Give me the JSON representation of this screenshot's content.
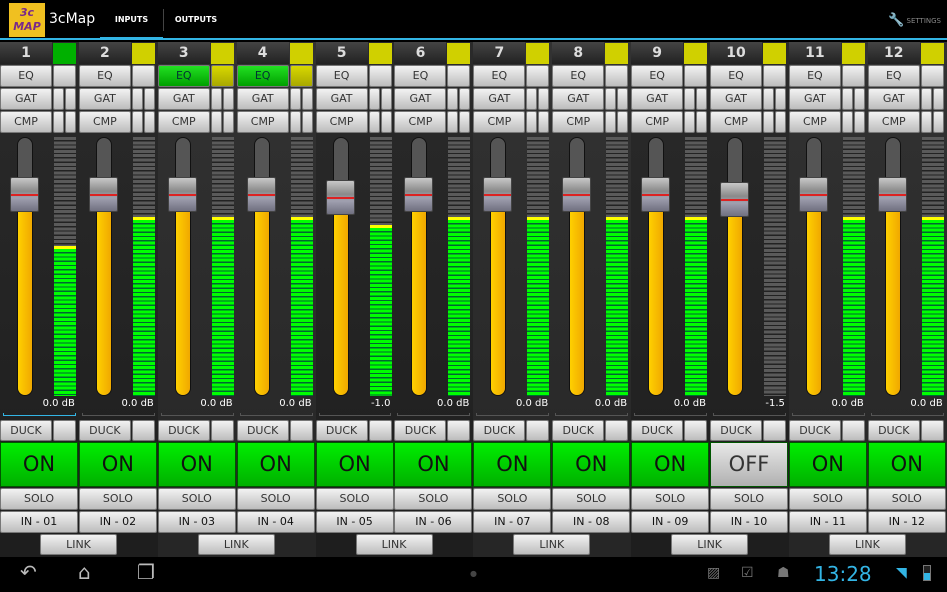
{
  "app": {
    "logo_top": "3c",
    "logo_bottom": "MAP",
    "name": "3cMap",
    "tabs": [
      "INPUTS",
      "OUTPUTS"
    ],
    "active_tab": "INPUTS",
    "settings": "SETTINGS"
  },
  "labels": {
    "eq": "EQ",
    "gat": "GAT",
    "cmp": "CMP",
    "duck": "DUCK",
    "solo": "SOLO",
    "link": "LINK"
  },
  "colors": {
    "accent": "#33b5e5",
    "on": "#00dd00",
    "meter": "#00ff00",
    "fader": "#ffc800",
    "indicator_yellow": "#d0d000",
    "indicator_green": "#00b000"
  },
  "channels": [
    {
      "num": "1",
      "indicator": "green",
      "eq_on": false,
      "fader_db": "0.0 dB",
      "fader_level": 0.78,
      "meter_level": 0.58,
      "state": "ON",
      "name": "IN - 01",
      "selected": true
    },
    {
      "num": "2",
      "indicator": "yellow",
      "eq_on": false,
      "fader_db": "0.0 dB",
      "fader_level": 0.78,
      "meter_level": 0.69,
      "state": "ON",
      "name": "IN - 02"
    },
    {
      "num": "3",
      "indicator": "yellow",
      "eq_on": true,
      "fader_db": "0.0 dB",
      "fader_level": 0.78,
      "meter_level": 0.69,
      "state": "ON",
      "name": "IN - 03"
    },
    {
      "num": "4",
      "indicator": "yellow",
      "eq_on": true,
      "fader_db": "0.0 dB",
      "fader_level": 0.78,
      "meter_level": 0.69,
      "state": "ON",
      "name": "IN - 04"
    },
    {
      "num": "5",
      "indicator": "yellow",
      "eq_on": false,
      "fader_db": "-1.0",
      "fader_level": 0.77,
      "meter_level": 0.66,
      "state": "ON",
      "name": "IN - 05"
    },
    {
      "num": "6",
      "indicator": "yellow",
      "eq_on": false,
      "fader_db": "0.0 dB",
      "fader_level": 0.78,
      "meter_level": 0.69,
      "state": "ON",
      "name": "IN - 06"
    },
    {
      "num": "7",
      "indicator": "yellow",
      "eq_on": false,
      "fader_db": "0.0 dB",
      "fader_level": 0.78,
      "meter_level": 0.69,
      "state": "ON",
      "name": "IN - 07"
    },
    {
      "num": "8",
      "indicator": "yellow",
      "eq_on": false,
      "fader_db": "0.0 dB",
      "fader_level": 0.78,
      "meter_level": 0.69,
      "state": "ON",
      "name": "IN - 08"
    },
    {
      "num": "9",
      "indicator": "yellow",
      "eq_on": false,
      "fader_db": "0.0 dB",
      "fader_level": 0.78,
      "meter_level": 0.69,
      "state": "ON",
      "name": "IN - 09"
    },
    {
      "num": "10",
      "indicator": "yellow",
      "eq_on": false,
      "fader_db": "-1.5",
      "fader_level": 0.76,
      "meter_level": 0,
      "state": "OFF",
      "name": "IN - 10"
    },
    {
      "num": "11",
      "indicator": "yellow",
      "eq_on": false,
      "fader_db": "0.0 dB",
      "fader_level": 0.78,
      "meter_level": 0.69,
      "state": "ON",
      "name": "IN - 11"
    },
    {
      "num": "12",
      "indicator": "yellow",
      "eq_on": false,
      "fader_db": "0.0 dB",
      "fader_level": 0.78,
      "meter_level": 0.69,
      "state": "ON",
      "name": "IN - 12"
    }
  ],
  "status": {
    "clock": "13:28"
  }
}
